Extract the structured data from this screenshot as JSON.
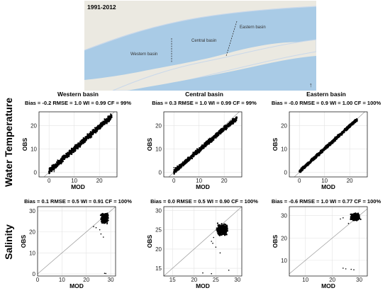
{
  "map": {
    "period": "1991-2012",
    "labels": [
      "Central basin",
      "Eastern basin",
      "Western basin"
    ],
    "colors": {
      "water": "#a9cbe6",
      "land": "#e9e7df",
      "shore": "#c9d8ea"
    }
  },
  "row_labels": [
    "Water Temperature",
    "Salinity"
  ],
  "chart_data": [
    {
      "type": "scatter",
      "panel": "temp-western",
      "row": 0,
      "col": 0,
      "title": "Western basin",
      "stats": "Bias = -0.2  RMSE = 1.0  WI = 0.99  CF = 99%",
      "xlabel": "MOD",
      "ylabel": "OBS",
      "xlim": [
        -4,
        27
      ],
      "ylim": [
        -2,
        26
      ],
      "xticks": [
        0,
        10,
        20
      ],
      "yticks": [
        0,
        10,
        20
      ],
      "one_to_one": true,
      "grid": true,
      "clusters": [
        {
          "x0": 0,
          "x1": 25,
          "slope": 0.95,
          "intercept": 0.5,
          "spread": 1.6
        }
      ],
      "outliers": [
        [
          2,
          0.3
        ]
      ]
    },
    {
      "type": "scatter",
      "panel": "temp-central",
      "row": 0,
      "col": 1,
      "title": "Central basin",
      "stats": "Bias = 0.3  RMSE = 1.0  WI = 0.99  CF = 99%",
      "xlabel": "MOD",
      "ylabel": "OBS",
      "xlim": [
        -4,
        27
      ],
      "ylim": [
        -2,
        26
      ],
      "xticks": [
        0,
        10,
        20
      ],
      "yticks": [
        0,
        10,
        20
      ],
      "one_to_one": true,
      "grid": true,
      "clusters": [
        {
          "x0": 0,
          "x1": 25,
          "slope": 0.93,
          "intercept": 0.2,
          "spread": 1.4
        }
      ],
      "outliers": [
        [
          0,
          2
        ]
      ]
    },
    {
      "type": "scatter",
      "panel": "temp-eastern",
      "row": 0,
      "col": 2,
      "title": "Eastern basin",
      "stats": "Bias = -0.0  RMSE = 0.9  WI = 1.00  CF = 100%",
      "xlabel": "MOD",
      "ylabel": "OBS",
      "xlim": [
        -4,
        27
      ],
      "ylim": [
        -2,
        26
      ],
      "xticks": [
        0,
        10,
        20
      ],
      "yticks": [
        0,
        10,
        20
      ],
      "one_to_one": true,
      "grid": true,
      "clusters": [
        {
          "x0": 0,
          "x1": 23,
          "slope": 0.98,
          "intercept": 0.3,
          "spread": 1.0
        }
      ],
      "outliers": []
    },
    {
      "type": "scatter",
      "panel": "salinity-western",
      "row": 1,
      "col": 0,
      "title": "",
      "stats": "Bias = 0.1  RMSE = 0.5  WI = 0.91  CF = 100%",
      "xlabel": "MOD",
      "ylabel": "OBS",
      "xlim": [
        0,
        32
      ],
      "ylim": [
        -1,
        32
      ],
      "xticks": [
        0,
        10,
        20,
        30
      ],
      "yticks": [
        0,
        10,
        20,
        30
      ],
      "one_to_one": true,
      "grid": true,
      "clusters": [
        {
          "cx": 27.5,
          "cy": 26.5,
          "rx": 1.8,
          "ry": 3.0
        }
      ],
      "outliers": [
        [
          25.5,
          21
        ],
        [
          24,
          22
        ],
        [
          23,
          22.5
        ],
        [
          26,
          19
        ],
        [
          27,
          17.5
        ],
        [
          28,
          0.2
        ],
        [
          27.5,
          0.3
        ]
      ]
    },
    {
      "type": "scatter",
      "panel": "salinity-central",
      "row": 1,
      "col": 1,
      "title": "",
      "stats": "Bias = 0.0  RMSE = 0.5  WI = 0.90  CF = 100%",
      "xlabel": "MOD",
      "ylabel": "OBS",
      "xlim": [
        13,
        31
      ],
      "ylim": [
        13,
        31
      ],
      "xticks": [
        15,
        20,
        25,
        30
      ],
      "yticks": [
        15,
        20,
        25,
        30
      ],
      "one_to_one": true,
      "grid": true,
      "clusters": [
        {
          "cx": 26.5,
          "cy": 25.0,
          "rx": 1.5,
          "ry": 1.8
        }
      ],
      "outliers": [
        [
          24.5,
          23
        ],
        [
          24,
          22
        ],
        [
          24.3,
          21.5
        ],
        [
          25,
          20.5
        ],
        [
          26,
          19
        ],
        [
          28,
          14.5
        ],
        [
          24,
          13.6
        ],
        [
          22,
          13.8
        ]
      ]
    },
    {
      "type": "scatter",
      "panel": "salinity-eastern",
      "row": 1,
      "col": 2,
      "title": "",
      "stats": "Bias = -0.6  RMSE = 1.0  WI = 0.77  CF = 100%",
      "xlabel": "MOD",
      "ylabel": "OBS",
      "xlim": [
        4,
        33
      ],
      "ylim": [
        3,
        34
      ],
      "xticks": [
        10,
        20,
        30
      ],
      "yticks": [
        10,
        20,
        30
      ],
      "one_to_one": true,
      "grid": true,
      "clusters": [
        {
          "cx": 28.5,
          "cy": 29.5,
          "rx": 2.2,
          "ry": 2.0
        }
      ],
      "outliers": [
        [
          23,
          28.5
        ],
        [
          24,
          29
        ],
        [
          26,
          26.5
        ],
        [
          24,
          6.5
        ],
        [
          25,
          6.2
        ],
        [
          27,
          6.0
        ],
        [
          28,
          5.8
        ]
      ]
    }
  ]
}
